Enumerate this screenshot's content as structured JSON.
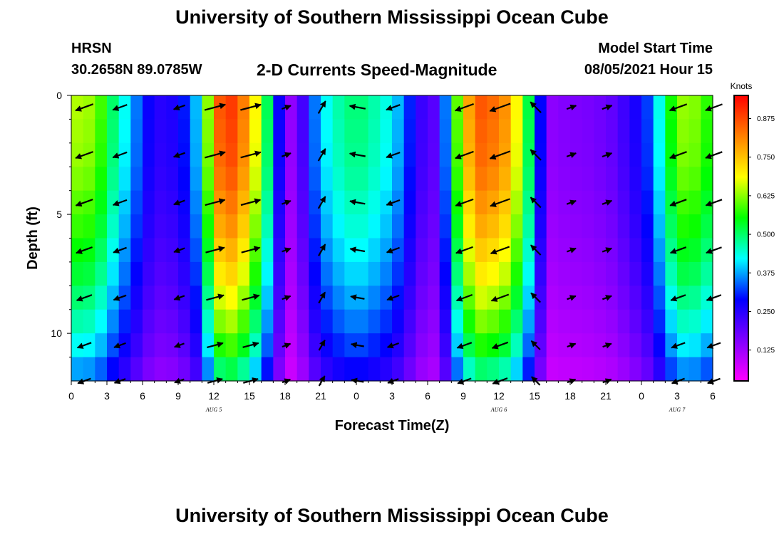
{
  "header": {
    "title": "University of Southern Mississippi Ocean Cube",
    "station": "HRSN",
    "coords": "30.2658N  89.0785W",
    "subtitle": "2-D Currents Speed-Magnitude",
    "model_label": "Model Start Time",
    "model_time": "08/05/2021 Hour 15"
  },
  "footer": {
    "title": "University of Southern Mississippi Ocean Cube"
  },
  "colors": {
    "stops": [
      "#ff00ff",
      "#8000ff",
      "#0000ff",
      "#00ffff",
      "#00ff00",
      "#ffff00",
      "#ff8000",
      "#ff0000"
    ],
    "frame": "#000000",
    "arrow": "#000000"
  },
  "chart_data": {
    "type": "heatmap",
    "title": "2-D Currents Speed-Magnitude",
    "xlabel": "Forecast Time(Z)",
    "ylabel": "Depth (ft)",
    "x_tick_labels": [
      "0",
      "3",
      "6",
      "9",
      "12",
      "15",
      "18",
      "21",
      "0",
      "3",
      "6",
      "9",
      "12",
      "15",
      "18",
      "21",
      "0",
      "3",
      "6"
    ],
    "x_range_hours": [
      0,
      54
    ],
    "date_labels": [
      {
        "text": "AUG 5",
        "hour": 12
      },
      {
        "text": "AUG 6",
        "hour": 36
      },
      {
        "text": "AUG 7",
        "hour": 51
      }
    ],
    "y_ticks": [
      0,
      5,
      10
    ],
    "y_range_ft": [
      0,
      12
    ],
    "depths_ft": [
      0.5,
      1.5,
      2.5,
      3.5,
      4.5,
      5.5,
      6.5,
      7.5,
      8.5,
      9.5,
      10.5,
      11.5
    ],
    "colorbar": {
      "units": "Knots",
      "range": [
        0.025,
        0.95
      ],
      "ticks": [
        "0.875",
        "0.750",
        "0.625",
        "0.500",
        "0.375",
        "0.250",
        "0.125"
      ],
      "tick_values": [
        0.875,
        0.75,
        0.625,
        0.5,
        0.375,
        0.25,
        0.125
      ]
    },
    "speed_profile": {
      "hours": [
        0,
        1,
        2,
        3,
        4,
        5,
        6,
        7,
        8,
        9,
        10,
        11,
        12,
        13,
        14,
        15,
        16,
        17,
        18,
        19,
        20,
        21,
        22,
        23,
        24,
        25,
        26,
        27,
        28,
        29,
        30,
        31,
        32,
        33,
        34,
        35,
        36,
        37,
        38,
        39,
        40,
        41,
        42,
        43,
        44,
        45,
        46,
        47,
        48,
        49,
        50,
        51,
        52,
        53,
        54
      ],
      "surface_knots": [
        0.64,
        0.65,
        0.62,
        0.55,
        0.45,
        0.4,
        0.3,
        0.26,
        0.24,
        0.28,
        0.32,
        0.45,
        0.8,
        0.92,
        0.86,
        0.78,
        0.6,
        0.42,
        0.14,
        0.14,
        0.3,
        0.4,
        0.45,
        0.48,
        0.5,
        0.48,
        0.45,
        0.42,
        0.35,
        0.26,
        0.2,
        0.2,
        0.5,
        0.7,
        0.86,
        0.86,
        0.82,
        0.78,
        0.6,
        0.44,
        0.14,
        0.15,
        0.16,
        0.16,
        0.17,
        0.18,
        0.2,
        0.25,
        0.28,
        0.36,
        0.5,
        0.62,
        0.64,
        0.6,
        0.55
      ],
      "depth_factor": [
        1.0,
        0.99,
        0.98,
        0.96,
        0.93,
        0.9,
        0.86,
        0.82,
        0.77,
        0.72,
        0.66,
        0.58
      ]
    },
    "vectors": {
      "hours": [
        1.5,
        4.5,
        9.5,
        12.5,
        15.5,
        18.5,
        21.5,
        24.5,
        27.5,
        33.5,
        36.5,
        39.5,
        42.5,
        45.5,
        51.5,
        54.5
      ],
      "depths_ft": [
        0.5,
        2.5,
        4.5,
        6.5,
        8.5,
        10.5,
        12
      ],
      "directions_deg": [
        200,
        200,
        200,
        15,
        15,
        20,
        60,
        170,
        200,
        200,
        200,
        135,
        20,
        20,
        200,
        200
      ],
      "arrow_scale_knots": 0.875
    }
  }
}
